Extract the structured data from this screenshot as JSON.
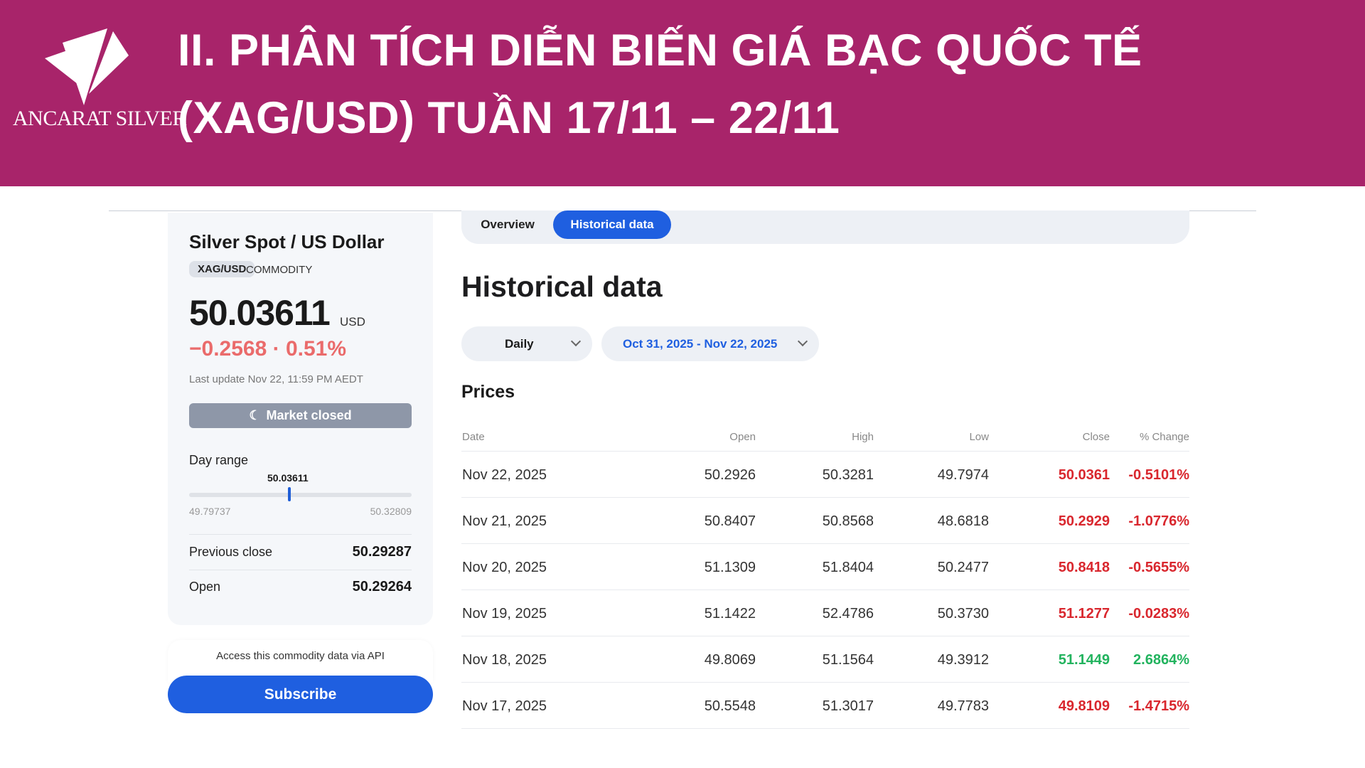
{
  "banner": {
    "brand": "ANCARAT SILVER",
    "title_line1": "II. PHÂN TÍCH DIỄN BIẾN GIÁ BẠC QUỐC TẾ",
    "title_line2": "(XAG/USD) TUẦN 17/11 – 22/11",
    "color": "#a8246a"
  },
  "card": {
    "title": "Silver Spot / US Dollar",
    "symbol": "XAG/USD",
    "type": "COMMODITY",
    "price": "50.03611",
    "currency": "USD",
    "change": "−0.2568 · 0.51%",
    "last_update": "Last update Nov 22, 11:59 PM AEDT",
    "market_status": "Market closed",
    "day_range_label": "Day range",
    "day_current": "50.03611",
    "day_low": "49.79737",
    "day_high": "50.32809",
    "day_position_fraction": 0.45,
    "prev_close_label": "Previous close",
    "prev_close": "50.29287",
    "open_label": "Open",
    "open": "50.29264"
  },
  "api": {
    "text": "Access this commodity data via API",
    "button": "Subscribe"
  },
  "tabs": [
    {
      "label": "Overview",
      "active": false
    },
    {
      "label": "Historical data",
      "active": true
    }
  ],
  "main": {
    "heading": "Historical data",
    "interval": "Daily",
    "date_range": "Oct 31, 2025 - Nov 22, 2025",
    "section": "Prices",
    "columns": [
      "Date",
      "Open",
      "High",
      "Low",
      "Close",
      "% Change"
    ],
    "rows": [
      {
        "date": "Nov 22, 2025",
        "open": "50.2926",
        "high": "50.3281",
        "low": "49.7974",
        "close": "50.0361",
        "change": "-0.5101%",
        "dir": "down"
      },
      {
        "date": "Nov 21, 2025",
        "open": "50.8407",
        "high": "50.8568",
        "low": "48.6818",
        "close": "50.2929",
        "change": "-1.0776%",
        "dir": "down"
      },
      {
        "date": "Nov 20, 2025",
        "open": "51.1309",
        "high": "51.8404",
        "low": "50.2477",
        "close": "50.8418",
        "change": "-0.5655%",
        "dir": "down"
      },
      {
        "date": "Nov 19, 2025",
        "open": "51.1422",
        "high": "52.4786",
        "low": "50.3730",
        "close": "51.1277",
        "change": "-0.0283%",
        "dir": "down"
      },
      {
        "date": "Nov 18, 2025",
        "open": "49.8069",
        "high": "51.1564",
        "low": "49.3912",
        "close": "51.1449",
        "change": "2.6864%",
        "dir": "up"
      },
      {
        "date": "Nov 17, 2025",
        "open": "50.5548",
        "high": "51.3017",
        "low": "49.7783",
        "close": "49.8109",
        "change": "-1.4715%",
        "dir": "down"
      }
    ]
  },
  "colors": {
    "down": "#d9272e",
    "up": "#22b35e",
    "accent": "#1f5fe0",
    "change_header": "#e86a6a"
  }
}
